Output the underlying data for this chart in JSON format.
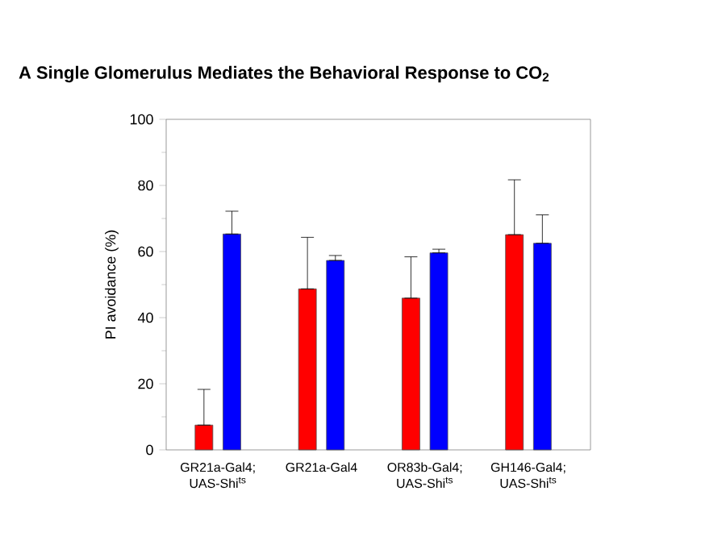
{
  "chart_data": {
    "type": "bar",
    "title": "A Single Glomerulus Mediates the Behavioral Response to CO$_{2}$",
    "categories": [
      "GR21a-Gal4; UAS-Shi$^{ts}$",
      "GR21a-Gal4",
      "OR83b-Gal4; UAS-Shi$^{ts}$",
      "GH146-Gal4; UAS-Shi$^{ts}$"
    ],
    "ylabel": "PI avoidance (%)",
    "ylim": [
      0,
      100
    ],
    "yticks": [
      0,
      20,
      40,
      60,
      80,
      100
    ],
    "series": [
      {
        "color": "#ff0000",
        "values": [
          7.5,
          48.7,
          45.9,
          65.1
        ],
        "errors": [
          [
            7.5,
            18.3
          ],
          [
            48.7,
            64.3
          ],
          [
            45.9,
            58.4
          ],
          [
            65.1,
            81.7
          ]
        ]
      },
      {
        "color": "#0000ff",
        "values": [
          65.3,
          57.3,
          59.6,
          62.5
        ],
        "errors": [
          [
            65.3,
            72.2
          ],
          [
            57.3,
            58.8
          ],
          [
            59.6,
            60.7
          ],
          [
            62.5,
            71.1
          ]
        ]
      }
    ],
    "grid": false
  }
}
